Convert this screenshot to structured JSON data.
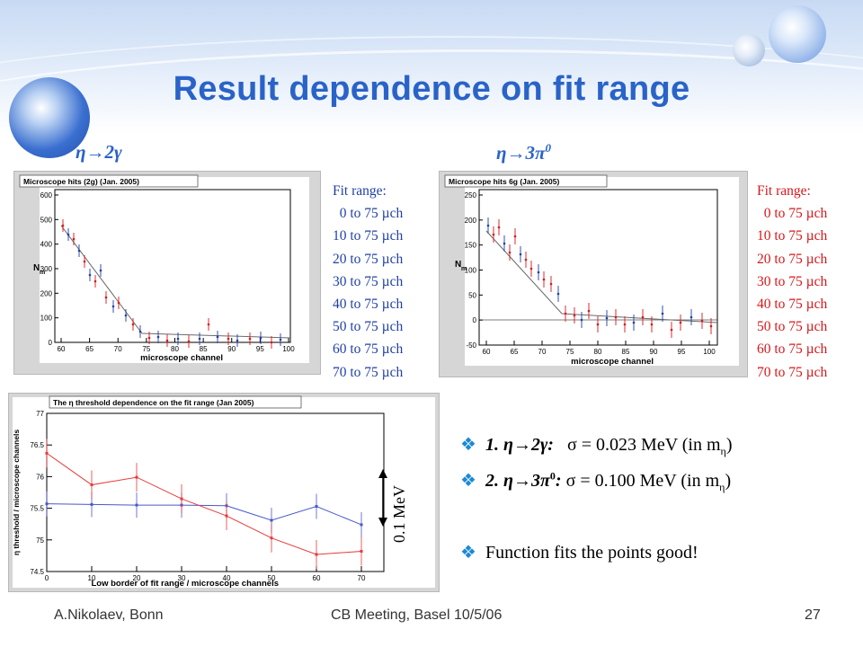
{
  "title": "Result dependence on fit range",
  "colors": {
    "title": "#2a63c8",
    "legend_blue": "#1f3fa6",
    "legend_red": "#d8161a",
    "bullet": "#1a8ad4"
  },
  "labels": {
    "eta_2g": "η→2γ",
    "eta_3pi_main": "η→3π",
    "eta_3pi_sup": "0"
  },
  "plot1": {
    "title": "Microscope hits (2g) (Jan. 2005)",
    "ylabel": "N",
    "ylabel_sub": "m",
    "xlabel": "microscope channel",
    "xticks": [
      "60",
      "65",
      "70",
      "75",
      "80",
      "85",
      "90",
      "95",
      "100"
    ],
    "yticks": [
      "600",
      "500",
      "400",
      "300",
      "200",
      "100",
      "0"
    ]
  },
  "plot2": {
    "title": "Microscope hits 6g (Jan. 2005)",
    "ylabel": "N",
    "ylabel_sub": "m",
    "xlabel": "microscope channel",
    "xticks": [
      "60",
      "65",
      "70",
      "75",
      "80",
      "85",
      "90",
      "95",
      "100"
    ],
    "yticks": [
      "250",
      "200",
      "150",
      "100",
      "50",
      "0",
      "-50"
    ]
  },
  "legend_left": {
    "header": "Fit range:",
    "items": [
      "  0 to 75 µch",
      "10 to 75 µch",
      "20 to 75 µch",
      "30 to 75 µch",
      "40 to 75 µch",
      "50 to 75 µch",
      "60 to 75 µch",
      "70 to 75 µch"
    ]
  },
  "legend_right": {
    "header": "Fit range:",
    "items": [
      "  0 to 75 µch",
      "10 to 75 µch",
      "20 to 75 µch",
      "30 to 75 µch",
      "40 to 75 µch",
      "50 to 75 µch",
      "60 to 75 µch",
      "70 to 75 µch"
    ]
  },
  "chart_data": {
    "type": "line",
    "title": "The η threshold dependence on the fit range (Jan 2005)",
    "xlabel": "Low border of fit range / microscope channels",
    "ylabel": "η threshold / microscope channels",
    "xlim": [
      0,
      75
    ],
    "ylim": [
      74.5,
      77
    ],
    "xticks": [
      0,
      10,
      20,
      30,
      40,
      50,
      60,
      70
    ],
    "yticks": [
      74.5,
      75,
      75.5,
      76,
      76.5,
      77
    ],
    "x": [
      0,
      10,
      20,
      30,
      40,
      50,
      60,
      70
    ],
    "series": [
      {
        "values": [
          75.57,
          75.56,
          75.55,
          75.55,
          75.54,
          75.31,
          75.53,
          75.24
        ],
        "color": "#4a58c8"
      },
      {
        "values": [
          76.37,
          75.87,
          75.99,
          75.65,
          75.38,
          75.03,
          74.77,
          74.82
        ],
        "color": "#e63a3a"
      }
    ]
  },
  "scale_annotation": "0.1 MeV",
  "bullets": [
    {
      "lead": "1. η→2γ:",
      "formula": "σ = 0.023 MeV (in m",
      "sub": "η",
      "tail": ")"
    },
    {
      "lead": "2. η→3π",
      "lead_sup": "0",
      "lead_tail": ":",
      "formula": "σ = 0.100 MeV (in m",
      "sub": "η",
      "tail": ")"
    },
    {
      "text": "Function fits the points good!"
    }
  ],
  "footer": {
    "left": "A.Nikolaev, Bonn",
    "center": "CB Meeting, Basel 10/5/06",
    "page": "27"
  }
}
